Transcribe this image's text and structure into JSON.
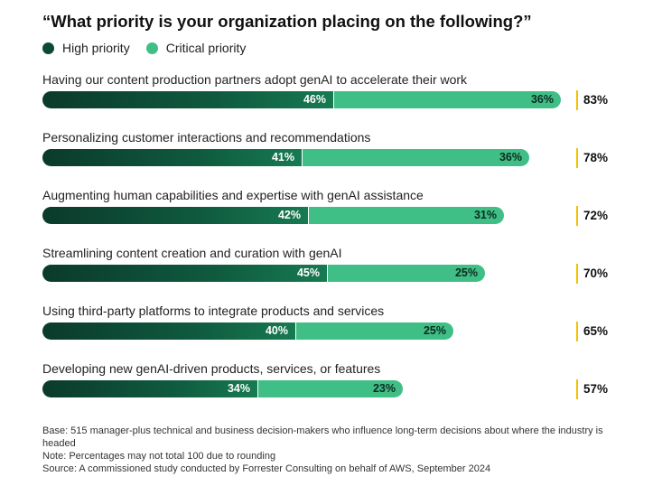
{
  "chart_data": {
    "type": "bar",
    "orientation": "horizontal",
    "stacked": true,
    "title": "“What priority is your organization placing on the following?”",
    "legend": {
      "placement": "top-left"
    },
    "categories": [
      "Having our content production partners adopt genAI to accelerate their work",
      "Personalizing customer interactions and recommendations",
      "Augmenting human capabilities and expertise with genAI assistance",
      "Streamlining content creation and curation with genAI",
      "Using third-party platforms to integrate products and services",
      "Developing new genAI-driven products, services, or features"
    ],
    "series": [
      {
        "name": "High priority",
        "color": "#0f5a3f",
        "values": [
          46,
          41,
          42,
          45,
          40,
          34
        ]
      },
      {
        "name": "Critical priority",
        "color": "#3fbf86",
        "values": [
          36,
          36,
          31,
          25,
          25,
          23
        ]
      }
    ],
    "totals": [
      83,
      78,
      72,
      70,
      65,
      57
    ],
    "value_suffix": "%",
    "xlim": [
      0,
      83
    ]
  },
  "footnotes": [
    "Base: 515 manager-plus technical and business decision-makers who influence long-term decisions about where the industry is headed",
    "Note: Percentages may not total 100 due to rounding",
    "Source: A commissioned study conducted by Forrester Consulting on behalf of AWS, September 2024"
  ]
}
